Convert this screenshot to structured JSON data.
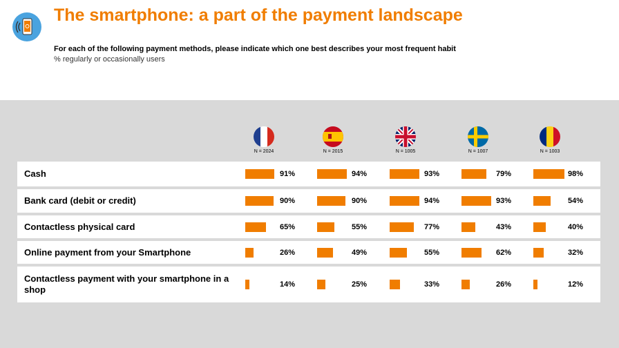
{
  "header": {
    "title": "The smartphone: a part of the payment landscape",
    "question": "For each of the following payment methods, please indicate which one  best describes your most frequent habit",
    "note": "% regularly or occasionally users",
    "logo_icon": "smartphone-payment-icon"
  },
  "colors": {
    "accent": "#f07d00",
    "panel": "#d9d9d9"
  },
  "chart_data": {
    "type": "bar",
    "unit": "%",
    "columns": [
      {
        "flag": "france-flag-icon",
        "n": "N = 2024"
      },
      {
        "flag": "spain-flag-icon",
        "n": "N = 2015"
      },
      {
        "flag": "uk-flag-icon",
        "n": "N = 1005"
      },
      {
        "flag": "sweden-flag-icon",
        "n": "N = 1007"
      },
      {
        "flag": "romania-flag-icon",
        "n": "N = 1003"
      }
    ],
    "categories": [
      "Cash",
      "Bank card (debit or credit)",
      "Contactless physical card",
      "Online payment from your Smartphone",
      "Contactless payment with your smartphone in a shop"
    ],
    "values": [
      [
        91,
        94,
        93,
        79,
        98
      ],
      [
        90,
        90,
        94,
        93,
        54
      ],
      [
        65,
        55,
        77,
        43,
        40
      ],
      [
        26,
        49,
        55,
        62,
        32
      ],
      [
        14,
        25,
        33,
        26,
        12
      ]
    ],
    "value_labels": [
      [
        "91%",
        "94%",
        "93%",
        "79%",
        "98%"
      ],
      [
        "90%",
        "90%",
        "94%",
        "93%",
        "54%"
      ],
      [
        "65%",
        "55%",
        "77%",
        "43%",
        "40%"
      ],
      [
        "26%",
        "49%",
        "55%",
        "62%",
        "32%"
      ],
      [
        "14%",
        "25%",
        "33%",
        "26%",
        "12%"
      ]
    ]
  }
}
